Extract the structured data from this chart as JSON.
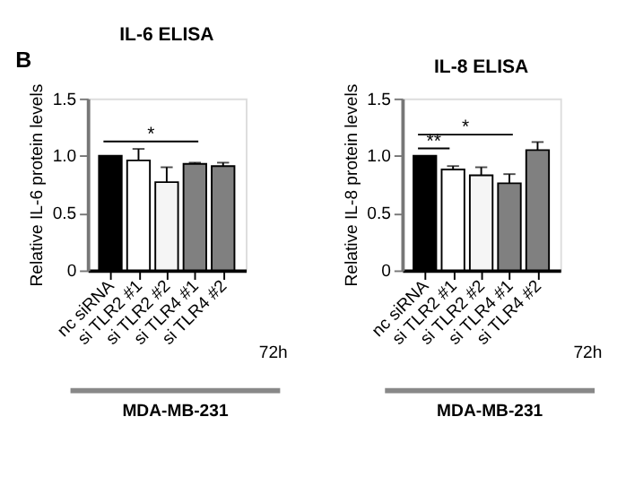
{
  "chart_data": [
    {
      "type": "bar",
      "title": "IL-6 ELISA",
      "ylabel": "Relative IL-6 protein levels",
      "categories": [
        "nc siRNA",
        "si TLR2 #1",
        "si TLR2 #2",
        "si TLR4 #1",
        "si TLR4 #2"
      ],
      "values": [
        1.0,
        0.96,
        0.77,
        0.93,
        0.91
      ],
      "colors": [
        "#000000",
        "#ffffff",
        "#f5f5f5",
        "#808080",
        "#808080"
      ],
      "errors": [
        null,
        [
          0.96,
          1.06
        ],
        [
          0.77,
          0.9
        ],
        [
          0.93,
          0.94
        ],
        [
          0.91,
          0.94
        ]
      ],
      "ylim": [
        0,
        1.5
      ],
      "yticks": [
        0,
        0.5,
        {
          "value": 1,
          "label": "1.0"
        },
        1.5
      ],
      "grid": false,
      "annotations": [
        "B",
        "*",
        "72h",
        "MDA-MB-231"
      ]
    },
    {
      "type": "bar",
      "title": "IL-8 ELISA",
      "ylabel": "Relative IL-8 protein levels",
      "categories": [
        "nc siRNA",
        "si TLR2 #1",
        "si TLR2 #2",
        "si TLR4 #1",
        "si TLR4 #2"
      ],
      "values": [
        1.0,
        0.88,
        0.83,
        0.76,
        1.05
      ],
      "colors": [
        "#000000",
        "#ffffff",
        "#f5f5f5",
        "#808080",
        "#808080"
      ],
      "errors": [
        null,
        [
          0.88,
          0.91
        ],
        [
          0.83,
          0.9
        ],
        [
          0.76,
          0.84
        ],
        [
          1.05,
          1.12
        ]
      ],
      "ylim": [
        0,
        1.5
      ],
      "yticks": [
        0,
        0.5,
        {
          "value": 1,
          "label": "1.0"
        },
        1.5
      ],
      "grid": false,
      "annotations": [
        "**",
        "*",
        "72h",
        "MDA-MB-231"
      ]
    }
  ]
}
